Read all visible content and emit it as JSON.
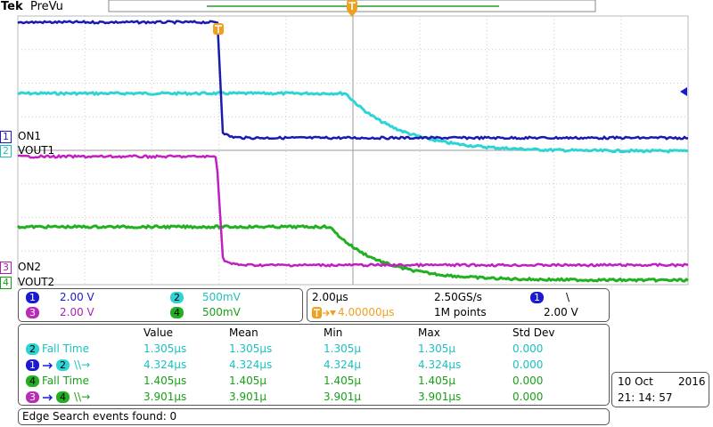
{
  "header": {
    "brand": "Tek",
    "mode": "PreVu"
  },
  "waveform_labels": [
    {
      "channel": "1",
      "label": "ON1"
    },
    {
      "channel": "2",
      "label": "VOUT1"
    },
    {
      "channel": "3",
      "label": "ON2"
    },
    {
      "channel": "4",
      "label": "VOUT2"
    }
  ],
  "channels": [
    {
      "number": "1",
      "scale": "2.00 V"
    },
    {
      "number": "2",
      "scale": "500mV"
    },
    {
      "number": "3",
      "scale": "2.00 V"
    },
    {
      "number": "4",
      "scale": "500mV"
    }
  ],
  "timebase": {
    "horizontal_scale": "2.00µs",
    "sample_rate": "2.50GS/s",
    "trigger_source": "1",
    "trigger_slope": "\\",
    "trigger_position": "4.00000µs",
    "record_length": "1M points",
    "trigger_level": "2.00 V"
  },
  "measurements": {
    "columns": [
      "Value",
      "Mean",
      "Min",
      "Max",
      "Std Dev"
    ],
    "rows": [
      {
        "source": "2",
        "name": "Fall Time",
        "values": [
          "1.305µs",
          "1.305µs",
          "1.305µ",
          "1.305µ",
          "0.000"
        ]
      },
      {
        "source": "1",
        "target": "2",
        "name": "\\\\→",
        "values": [
          "4.324µs",
          "4.324µs",
          "4.324µ",
          "4.324µs",
          "0.000"
        ]
      },
      {
        "source": "4",
        "name": "Fall Time",
        "values": [
          "1.405µs",
          "1.405µ",
          "1.405µ",
          "1.405µ",
          "0.000"
        ]
      },
      {
        "source": "3",
        "target": "4",
        "name": "\\\\→",
        "values": [
          "3.901µs",
          "3.901µ",
          "3.901µ",
          "3.901µs",
          "0.000"
        ]
      }
    ]
  },
  "date": {
    "day_month": "10 Oct",
    "year": "2016",
    "time": "21: 14: 57"
  },
  "status": "Edge Search events found: 0"
}
